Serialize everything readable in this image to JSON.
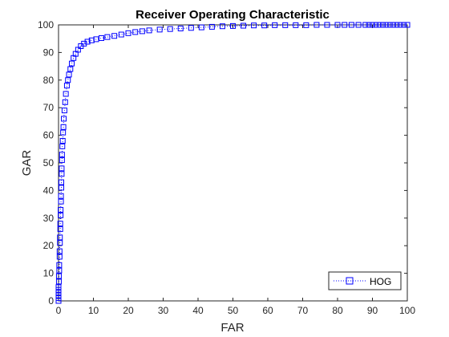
{
  "chart_data": {
    "type": "line",
    "title": "Receiver Operating Characteristic",
    "xlabel": "FAR",
    "ylabel": "GAR",
    "xlim": [
      0,
      100
    ],
    "ylim": [
      0,
      100
    ],
    "xticks": [
      0,
      10,
      20,
      30,
      40,
      50,
      60,
      70,
      80,
      90,
      100
    ],
    "yticks": [
      0,
      10,
      20,
      30,
      40,
      50,
      60,
      70,
      80,
      90,
      100
    ],
    "grid": false,
    "legend_position": "bottom-right",
    "series": [
      {
        "name": "HOG",
        "color": "#0000ff",
        "line_style": "dotted",
        "marker": "square",
        "points": [
          [
            0,
            0
          ],
          [
            0,
            1
          ],
          [
            0,
            2
          ],
          [
            0,
            3
          ],
          [
            0,
            4
          ],
          [
            0,
            5
          ],
          [
            0.1,
            7
          ],
          [
            0.1,
            9
          ],
          [
            0.2,
            11
          ],
          [
            0.2,
            13
          ],
          [
            0.3,
            16
          ],
          [
            0.3,
            18
          ],
          [
            0.4,
            21
          ],
          [
            0.4,
            23
          ],
          [
            0.5,
            26
          ],
          [
            0.5,
            28
          ],
          [
            0.6,
            31
          ],
          [
            0.6,
            33
          ],
          [
            0.7,
            36
          ],
          [
            0.7,
            38
          ],
          [
            0.8,
            41
          ],
          [
            0.8,
            43
          ],
          [
            0.9,
            46
          ],
          [
            0.9,
            48
          ],
          [
            1.0,
            51
          ],
          [
            1.0,
            53
          ],
          [
            1.1,
            56
          ],
          [
            1.2,
            58
          ],
          [
            1.3,
            61
          ],
          [
            1.4,
            63
          ],
          [
            1.5,
            66
          ],
          [
            1.7,
            69
          ],
          [
            1.9,
            72
          ],
          [
            2.1,
            75
          ],
          [
            2.4,
            78
          ],
          [
            2.7,
            80
          ],
          [
            3.0,
            82
          ],
          [
            3.4,
            84
          ],
          [
            3.8,
            86
          ],
          [
            4.3,
            88
          ],
          [
            4.9,
            89.5
          ],
          [
            5.6,
            91
          ],
          [
            6.4,
            92.3
          ],
          [
            7.3,
            93.2
          ],
          [
            8.3,
            93.9
          ],
          [
            9.5,
            94.4
          ],
          [
            10.8,
            94.8
          ],
          [
            12.3,
            95.2
          ],
          [
            14,
            95.6
          ],
          [
            16,
            96
          ],
          [
            18,
            96.5
          ],
          [
            20,
            97
          ],
          [
            22,
            97.4
          ],
          [
            24,
            97.7
          ],
          [
            26,
            98
          ],
          [
            29,
            98.3
          ],
          [
            32,
            98.5
          ],
          [
            35,
            98.7
          ],
          [
            38,
            98.9
          ],
          [
            41,
            99.1
          ],
          [
            44,
            99.3
          ],
          [
            47,
            99.5
          ],
          [
            50,
            99.6
          ],
          [
            53,
            99.7
          ],
          [
            56,
            99.8
          ],
          [
            59,
            99.8
          ],
          [
            62,
            99.9
          ],
          [
            65,
            99.9
          ],
          [
            68,
            99.9
          ],
          [
            71,
            99.9
          ],
          [
            74,
            100
          ],
          [
            77,
            100
          ],
          [
            80,
            100
          ],
          [
            82,
            100
          ],
          [
            84,
            100
          ],
          [
            86,
            100
          ],
          [
            88,
            100
          ],
          [
            89,
            100
          ],
          [
            90,
            100
          ],
          [
            91,
            100
          ],
          [
            92,
            100
          ],
          [
            93,
            100
          ],
          [
            94,
            100
          ],
          [
            95,
            100
          ],
          [
            96,
            100
          ],
          [
            97,
            100
          ],
          [
            98,
            100
          ],
          [
            99,
            100
          ],
          [
            100,
            100
          ]
        ]
      }
    ]
  }
}
